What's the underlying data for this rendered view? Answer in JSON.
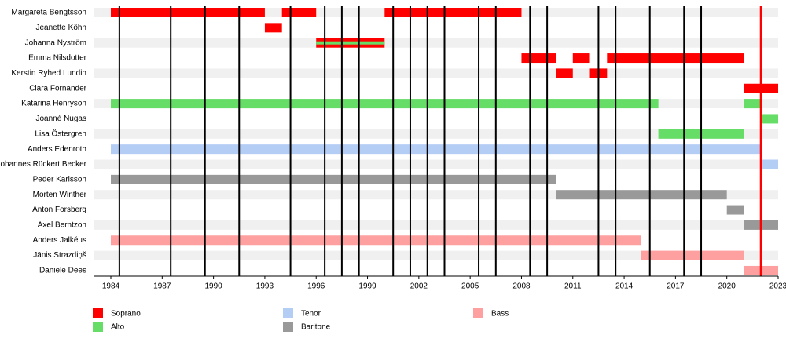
{
  "chart_data": {
    "type": "timeline",
    "xlim": [
      1984,
      2023
    ],
    "xticks": [
      1984,
      1987,
      1990,
      1993,
      1996,
      1999,
      2002,
      2005,
      2008,
      2011,
      2014,
      2017,
      2020,
      2023
    ],
    "series": [
      {
        "name": "Soprano",
        "color": "#ff0000"
      },
      {
        "name": "Alto",
        "color": "#66dd66"
      },
      {
        "name": "Tenor",
        "color": "#b4cdf5"
      },
      {
        "name": "Baritone",
        "color": "#999999"
      },
      {
        "name": "Bass",
        "color": "#ffa0a0"
      }
    ],
    "rows": [
      {
        "name": "Margareta Bengtsson",
        "bars": [
          {
            "start": 1984,
            "end": 1993,
            "role": 0
          },
          {
            "start": 1994,
            "end": 1996,
            "role": 0
          },
          {
            "start": 2000,
            "end": 2008,
            "role": 0
          }
        ]
      },
      {
        "name": "Jeanette Köhn",
        "bars": [
          {
            "start": 1993,
            "end": 1994,
            "role": 0
          }
        ]
      },
      {
        "name": "Johanna Nyström",
        "bars": [
          {
            "start": 1996,
            "end": 2000,
            "role": 0
          },
          {
            "start": 1996,
            "end": 2000,
            "role": 1
          }
        ]
      },
      {
        "name": "Emma Nilsdotter",
        "bars": [
          {
            "start": 2008,
            "end": 2010,
            "role": 0
          },
          {
            "start": 2011,
            "end": 2012,
            "role": 0
          },
          {
            "start": 2013,
            "end": 2021,
            "role": 0
          }
        ]
      },
      {
        "name": "Kerstin Ryhed Lundin",
        "bars": [
          {
            "start": 2010,
            "end": 2011,
            "role": 0
          },
          {
            "start": 2012,
            "end": 2013,
            "role": 0
          }
        ]
      },
      {
        "name": "Clara Fornander",
        "bars": [
          {
            "start": 2021,
            "end": 2023,
            "role": 0
          }
        ]
      },
      {
        "name": "Katarina Henryson",
        "bars": [
          {
            "start": 1984,
            "end": 2016,
            "role": 1
          },
          {
            "start": 2021,
            "end": 2022,
            "role": 1
          }
        ]
      },
      {
        "name": "Joanné Nugas",
        "bars": [
          {
            "start": 2022,
            "end": 2023,
            "role": 1
          }
        ]
      },
      {
        "name": "Lisa Östergren",
        "bars": [
          {
            "start": 2016,
            "end": 2021,
            "role": 1
          }
        ]
      },
      {
        "name": "Anders Edenroth",
        "bars": [
          {
            "start": 1984,
            "end": 2022,
            "role": 2
          }
        ]
      },
      {
        "name": "Johannes Rückert Becker",
        "bars": [
          {
            "start": 2022,
            "end": 2023,
            "role": 2
          }
        ]
      },
      {
        "name": "Peder Karlsson",
        "bars": [
          {
            "start": 1984,
            "end": 2010,
            "role": 3
          }
        ]
      },
      {
        "name": "Morten Winther",
        "bars": [
          {
            "start": 2010,
            "end": 2020,
            "role": 3
          }
        ]
      },
      {
        "name": "Anton Forsberg",
        "bars": [
          {
            "start": 2020,
            "end": 2021,
            "role": 3
          }
        ]
      },
      {
        "name": "Axel Berntzon",
        "bars": [
          {
            "start": 2021,
            "end": 2023,
            "role": 3
          }
        ]
      },
      {
        "name": "Anders Jalkéus",
        "bars": [
          {
            "start": 1984,
            "end": 2015,
            "role": 4
          }
        ]
      },
      {
        "name": "Jānis Strazdiņš",
        "bars": [
          {
            "start": 2015,
            "end": 2021,
            "role": 4
          }
        ]
      },
      {
        "name": "Daniele Dees",
        "bars": [
          {
            "start": 2021,
            "end": 2023,
            "role": 4
          }
        ]
      }
    ],
    "events": {
      "color": "#000000",
      "values": [
        1984.5,
        1987.5,
        1989.5,
        1991.5,
        1994.5,
        1996.5,
        1997.5,
        1998.5,
        2000.5,
        2001.5,
        2002.5,
        2003.5,
        2005.5,
        2006.5,
        2008.5,
        2009.5,
        2012.5,
        2013.5,
        2015.5,
        2017.5,
        2018.5
      ]
    },
    "marker": {
      "value": 2022,
      "color": "#ff0000"
    }
  }
}
